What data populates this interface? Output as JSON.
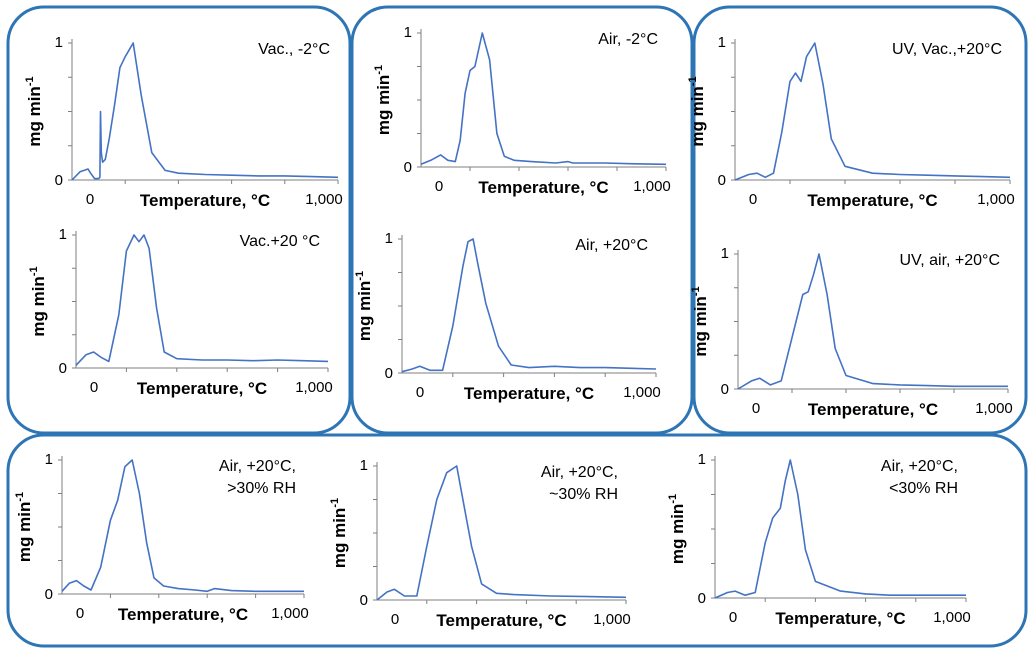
{
  "theme": {
    "frame_color": "#2E75B6",
    "line_color": "#4472C4",
    "axis_color": "#7F7F7F"
  },
  "chart_data": [
    {
      "type": "line",
      "title": "Vac., -2°C",
      "group": 1,
      "ylabel": "mg min",
      "ylabel_sup": "-1",
      "xlabel": "Temperature, °C",
      "x_tick_labels": [
        "0",
        "1,000"
      ],
      "y_tick_labels": [
        "0",
        "1"
      ],
      "xlim": [
        0,
        1000
      ],
      "ylim": [
        0,
        1
      ],
      "series": [
        {
          "x": [
            0,
            30,
            60,
            70,
            85,
            100,
            105,
            107,
            110,
            115,
            125,
            140,
            160,
            180,
            200,
            230,
            260,
            300,
            350,
            400,
            500,
            600,
            700,
            800,
            900,
            1000
          ],
          "y": [
            0,
            0.06,
            0.08,
            0.05,
            0.01,
            0.01,
            0.02,
            0.5,
            0.2,
            0.13,
            0.15,
            0.3,
            0.55,
            0.82,
            0.9,
            1.0,
            0.62,
            0.2,
            0.07,
            0.05,
            0.04,
            0.035,
            0.03,
            0.03,
            0.025,
            0.02
          ]
        }
      ]
    },
    {
      "type": "line",
      "title": "Air, -2°C",
      "group": 2,
      "ylabel": "mg min",
      "ylabel_sup": "-1",
      "xlabel": "Temperature, °C",
      "x_tick_labels": [
        "0",
        "1,000"
      ],
      "y_tick_labels": [
        "0",
        "1"
      ],
      "xlim": [
        0,
        1000
      ],
      "ylim": [
        0,
        1
      ],
      "series": [
        {
          "x": [
            0,
            40,
            80,
            110,
            140,
            160,
            180,
            200,
            220,
            250,
            280,
            310,
            340,
            380,
            450,
            550,
            600,
            620,
            650,
            750,
            850,
            1000
          ],
          "y": [
            0.02,
            0.05,
            0.09,
            0.05,
            0.04,
            0.2,
            0.55,
            0.72,
            0.75,
            1.0,
            0.8,
            0.25,
            0.08,
            0.05,
            0.04,
            0.03,
            0.04,
            0.03,
            0.03,
            0.03,
            0.025,
            0.02
          ]
        }
      ]
    },
    {
      "type": "line",
      "title": "UV, Vac.,+20°C",
      "group": 3,
      "ylabel": "mg min",
      "ylabel_sup": "-1",
      "xlabel": "Temperature, °C",
      "x_tick_labels": [
        "0",
        "1,000"
      ],
      "y_tick_labels": [
        "0",
        "1"
      ],
      "xlim": [
        0,
        1000
      ],
      "ylim": [
        0,
        1
      ],
      "series": [
        {
          "x": [
            0,
            50,
            80,
            110,
            140,
            170,
            200,
            220,
            240,
            260,
            290,
            320,
            350,
            400,
            500,
            600,
            700,
            800,
            900,
            1000
          ],
          "y": [
            0,
            0.04,
            0.05,
            0.02,
            0.05,
            0.35,
            0.72,
            0.78,
            0.72,
            0.9,
            1.0,
            0.7,
            0.3,
            0.1,
            0.05,
            0.04,
            0.035,
            0.03,
            0.025,
            0.02
          ]
        }
      ]
    },
    {
      "type": "line",
      "title": "Vac.+20 °C",
      "group": 1,
      "ylabel": "mg min",
      "ylabel_sup": "-1",
      "xlabel": "Temperature, °C",
      "x_tick_labels": [
        "0",
        "1,000"
      ],
      "y_tick_labels": [
        "0",
        "1"
      ],
      "xlim": [
        0,
        1000
      ],
      "ylim": [
        0,
        1
      ],
      "series": [
        {
          "x": [
            0,
            40,
            70,
            100,
            130,
            170,
            200,
            230,
            250,
            270,
            290,
            320,
            350,
            400,
            500,
            600,
            700,
            800,
            900,
            1000
          ],
          "y": [
            0.02,
            0.1,
            0.12,
            0.08,
            0.05,
            0.4,
            0.88,
            1.0,
            0.95,
            1.0,
            0.9,
            0.45,
            0.12,
            0.07,
            0.06,
            0.06,
            0.055,
            0.06,
            0.055,
            0.05
          ]
        }
      ]
    },
    {
      "type": "line",
      "title": "Air, +20°C",
      "group": 2,
      "ylabel": "mg min",
      "ylabel_sup": "-1",
      "xlabel": "Temperature, °C",
      "x_tick_labels": [
        "0",
        "1,000"
      ],
      "y_tick_labels": [
        "0",
        "1"
      ],
      "xlim": [
        0,
        1000
      ],
      "ylim": [
        0,
        1
      ],
      "series": [
        {
          "x": [
            0,
            40,
            70,
            110,
            160,
            200,
            240,
            260,
            280,
            300,
            330,
            380,
            430,
            500,
            600,
            700,
            800,
            1000
          ],
          "y": [
            0.01,
            0.03,
            0.05,
            0.02,
            0.02,
            0.35,
            0.8,
            0.98,
            1.0,
            0.8,
            0.52,
            0.2,
            0.06,
            0.04,
            0.05,
            0.04,
            0.04,
            0.03
          ]
        }
      ]
    },
    {
      "type": "line",
      "title": "UV, air, +20°C",
      "group": 3,
      "ylabel": "mg min",
      "ylabel_sup": "-1",
      "xlabel": "Temperature, °C",
      "x_tick_labels": [
        "0",
        "1,000"
      ],
      "y_tick_labels": [
        "0",
        "1"
      ],
      "xlim": [
        0,
        1000
      ],
      "ylim": [
        0,
        1
      ],
      "series": [
        {
          "x": [
            0,
            50,
            80,
            120,
            160,
            200,
            240,
            260,
            280,
            300,
            330,
            360,
            400,
            500,
            600,
            700,
            800,
            1000
          ],
          "y": [
            0,
            0.06,
            0.08,
            0.03,
            0.06,
            0.38,
            0.7,
            0.72,
            0.85,
            1.0,
            0.7,
            0.3,
            0.1,
            0.04,
            0.03,
            0.025,
            0.02,
            0.02
          ]
        }
      ]
    },
    {
      "type": "line",
      "title": "Air, +20°C,",
      "subtitle": ">30% RH",
      "group": 4,
      "ylabel": "mg min",
      "ylabel_sup": "-1",
      "xlabel": "Temperature, °C",
      "x_tick_labels": [
        "0",
        "1,000"
      ],
      "y_tick_labels": [
        "0",
        "1"
      ],
      "xlim": [
        0,
        1000
      ],
      "ylim": [
        0,
        1
      ],
      "series": [
        {
          "x": [
            0,
            30,
            60,
            90,
            120,
            160,
            200,
            230,
            260,
            290,
            320,
            350,
            380,
            420,
            480,
            550,
            600,
            630,
            700,
            800,
            900,
            1000
          ],
          "y": [
            0.02,
            0.08,
            0.1,
            0.06,
            0.03,
            0.2,
            0.55,
            0.7,
            0.95,
            1.0,
            0.75,
            0.38,
            0.12,
            0.06,
            0.04,
            0.03,
            0.02,
            0.04,
            0.025,
            0.02,
            0.02,
            0.02
          ]
        }
      ]
    },
    {
      "type": "line",
      "title": "Air, +20°C,",
      "subtitle": "~30% RH",
      "group": 4,
      "ylabel": "mg min",
      "ylabel_sup": "-1",
      "xlabel": "Temperature, °C",
      "x_tick_labels": [
        "0",
        "1,000"
      ],
      "y_tick_labels": [
        "0",
        "1"
      ],
      "xlim": [
        0,
        1000
      ],
      "ylim": [
        0,
        1
      ],
      "series": [
        {
          "x": [
            0,
            40,
            70,
            110,
            160,
            200,
            240,
            280,
            320,
            360,
            380,
            420,
            480,
            550,
            700,
            850,
            1000
          ],
          "y": [
            0,
            0.06,
            0.08,
            0.03,
            0.03,
            0.4,
            0.75,
            0.95,
            1.0,
            0.6,
            0.4,
            0.12,
            0.05,
            0.04,
            0.03,
            0.025,
            0.02
          ]
        }
      ]
    },
    {
      "type": "line",
      "title": "Air, +20°C,",
      "subtitle": "<30% RH",
      "group": 4,
      "ylabel": "mg min",
      "ylabel_sup": "-1",
      "xlabel": "Temperature, °C",
      "x_tick_labels": [
        "0",
        "1,000"
      ],
      "y_tick_labels": [
        "0",
        "1"
      ],
      "xlim": [
        0,
        1000
      ],
      "ylim": [
        0,
        1
      ],
      "series": [
        {
          "x": [
            0,
            50,
            80,
            120,
            160,
            200,
            230,
            260,
            280,
            300,
            330,
            360,
            400,
            500,
            600,
            700,
            800,
            1000
          ],
          "y": [
            0,
            0.04,
            0.05,
            0.02,
            0.04,
            0.4,
            0.58,
            0.65,
            0.85,
            1.0,
            0.75,
            0.35,
            0.12,
            0.05,
            0.03,
            0.02,
            0.02,
            0.02
          ]
        }
      ]
    }
  ]
}
